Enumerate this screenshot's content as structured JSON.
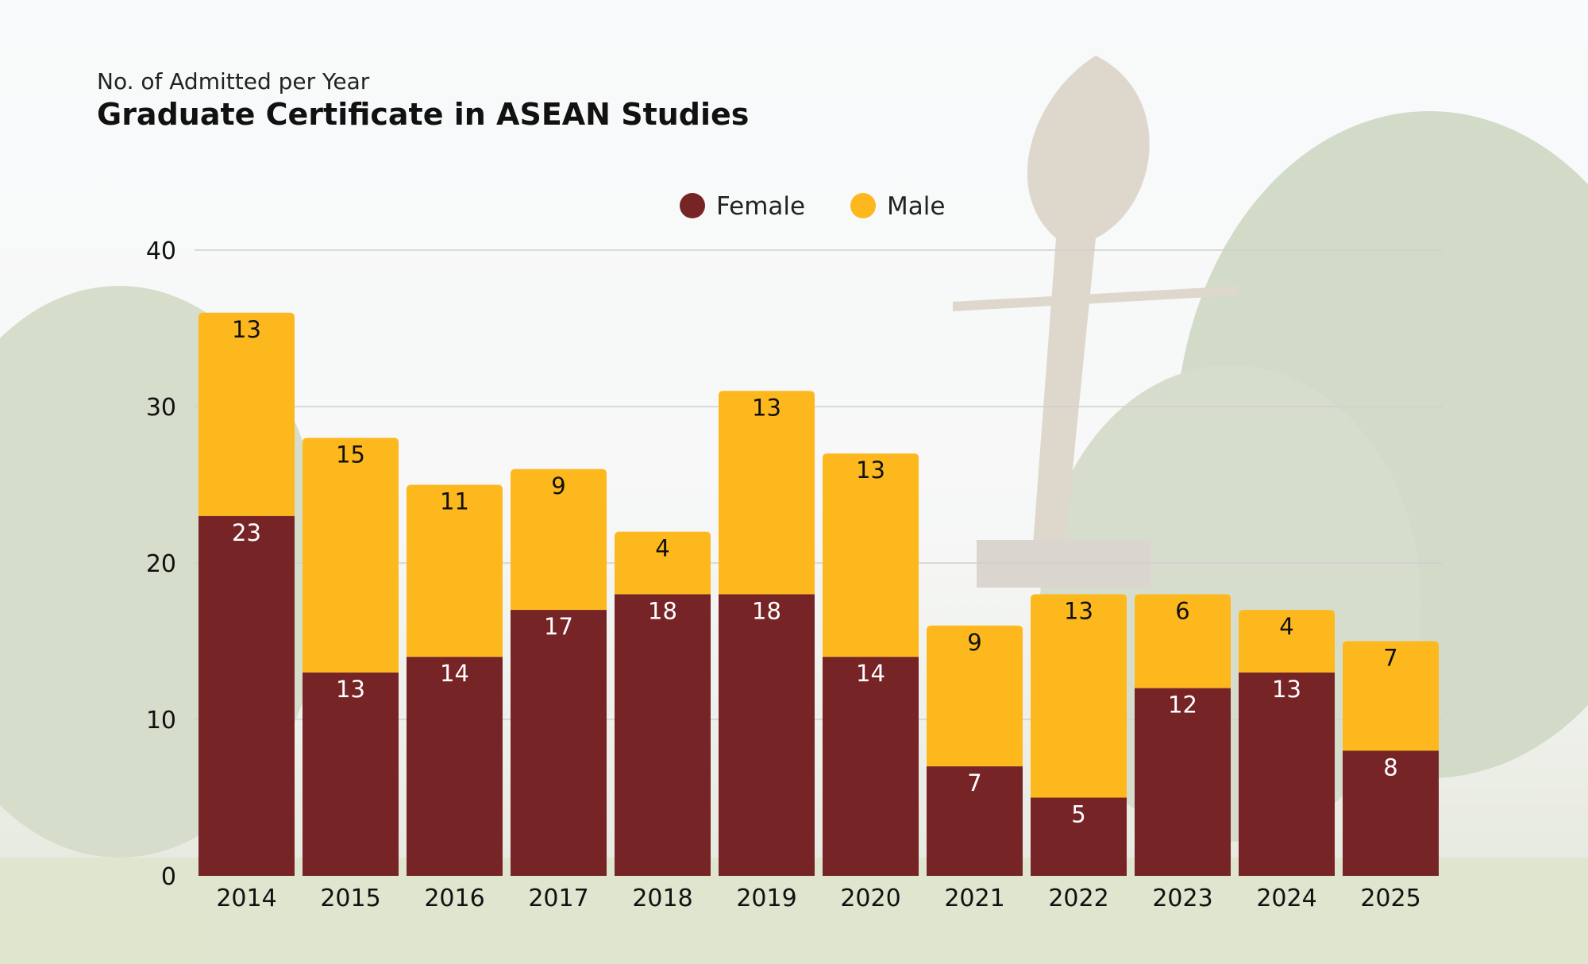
{
  "header": {
    "subtitle": "No. of Admitted per Year",
    "title": "Graduate Certificate in ASEAN Studies"
  },
  "colors": {
    "female": "#772427",
    "male": "#fdb81d",
    "grid": "#d0d0d0",
    "female_label": "#ffffff",
    "male_label": "#111111"
  },
  "chart_data": {
    "type": "bar",
    "stacked": true,
    "categories": [
      "2014",
      "2015",
      "2016",
      "2017",
      "2018",
      "2019",
      "2020",
      "2021",
      "2022",
      "2023",
      "2024",
      "2025"
    ],
    "series": [
      {
        "name": "Female",
        "values": [
          23,
          13,
          14,
          17,
          18,
          18,
          14,
          7,
          5,
          12,
          13,
          8
        ]
      },
      {
        "name": "Male",
        "values": [
          13,
          15,
          11,
          9,
          4,
          13,
          13,
          9,
          13,
          6,
          4,
          7
        ]
      }
    ],
    "ylim": [
      0,
      40
    ],
    "yticks": [
      0,
      10,
      20,
      30,
      40
    ],
    "grid": true,
    "legend": "top-center",
    "data_labels": true
  }
}
